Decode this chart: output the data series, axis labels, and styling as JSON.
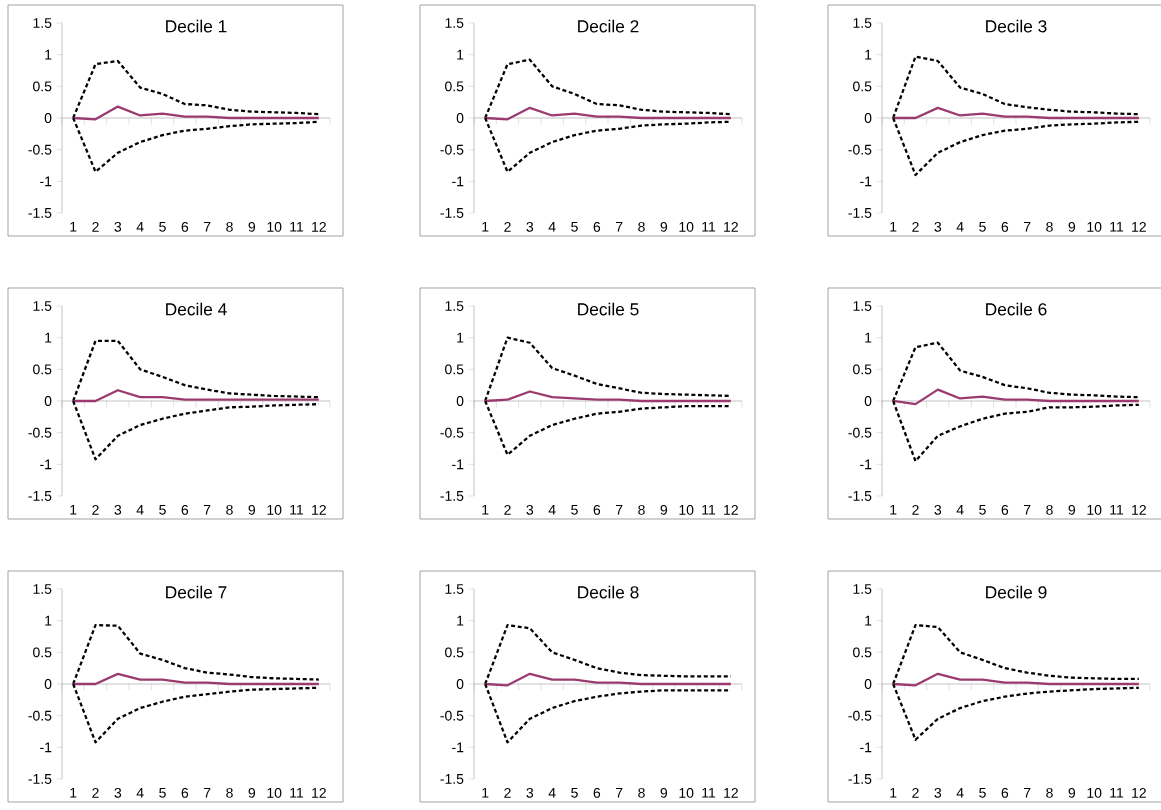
{
  "chart_data": [
    {
      "type": "line",
      "title": "Decile 1",
      "categories": [
        "1",
        "2",
        "3",
        "4",
        "5",
        "6",
        "7",
        "8",
        "9",
        "10",
        "11",
        "12"
      ],
      "ylim": [
        -1.5,
        1.5
      ],
      "yticks": [
        -1.5,
        -1,
        -0.5,
        0,
        0.5,
        1,
        1.5
      ],
      "marker": "none",
      "series": [
        {
          "color": "#000000",
          "line_style": "dashed",
          "values": [
            0,
            0.85,
            0.9,
            0.48,
            0.38,
            0.22,
            0.2,
            0.13,
            0.1,
            0.09,
            0.08,
            0.06
          ]
        },
        {
          "color": "#9b3a6e",
          "line_style": "solid",
          "values": [
            0,
            -0.02,
            0.18,
            0.04,
            0.07,
            0.02,
            0.02,
            0,
            0,
            0,
            0,
            0
          ]
        },
        {
          "color": "#000000",
          "line_style": "dashed",
          "values": [
            0,
            -0.85,
            -0.55,
            -0.38,
            -0.27,
            -0.2,
            -0.17,
            -0.13,
            -0.1,
            -0.09,
            -0.08,
            -0.06
          ]
        }
      ]
    },
    {
      "type": "line",
      "title": "Decile 2",
      "categories": [
        "1",
        "2",
        "3",
        "4",
        "5",
        "6",
        "7",
        "8",
        "9",
        "10",
        "11",
        "12"
      ],
      "ylim": [
        -1.5,
        1.5
      ],
      "yticks": [
        -1.5,
        -1,
        -0.5,
        0,
        0.5,
        1,
        1.5
      ],
      "marker": "none",
      "series": [
        {
          "color": "#000000",
          "line_style": "dashed",
          "values": [
            0,
            0.85,
            0.92,
            0.5,
            0.38,
            0.22,
            0.2,
            0.13,
            0.1,
            0.09,
            0.08,
            0.06
          ]
        },
        {
          "color": "#9b3a6e",
          "line_style": "solid",
          "values": [
            0,
            -0.02,
            0.16,
            0.04,
            0.07,
            0.02,
            0.02,
            0,
            0,
            0,
            0,
            0
          ]
        },
        {
          "color": "#000000",
          "line_style": "dashed",
          "values": [
            0,
            -0.85,
            -0.55,
            -0.38,
            -0.27,
            -0.2,
            -0.17,
            -0.12,
            -0.1,
            -0.09,
            -0.07,
            -0.06
          ]
        }
      ]
    },
    {
      "type": "line",
      "title": "Decile 3",
      "categories": [
        "1",
        "2",
        "3",
        "4",
        "5",
        "6",
        "7",
        "8",
        "9",
        "10",
        "11",
        "12"
      ],
      "ylim": [
        -1.5,
        1.5
      ],
      "yticks": [
        -1.5,
        -1,
        -0.5,
        0,
        0.5,
        1,
        1.5
      ],
      "marker": "none",
      "series": [
        {
          "color": "#000000",
          "line_style": "dashed",
          "values": [
            0,
            0.97,
            0.9,
            0.48,
            0.38,
            0.22,
            0.17,
            0.13,
            0.1,
            0.09,
            0.07,
            0.06
          ]
        },
        {
          "color": "#9b3a6e",
          "line_style": "solid",
          "values": [
            0,
            0,
            0.16,
            0.04,
            0.07,
            0.02,
            0.02,
            0,
            0,
            0,
            0,
            0
          ]
        },
        {
          "color": "#000000",
          "line_style": "dashed",
          "values": [
            0,
            -0.9,
            -0.55,
            -0.38,
            -0.27,
            -0.2,
            -0.17,
            -0.12,
            -0.1,
            -0.09,
            -0.07,
            -0.06
          ]
        }
      ]
    },
    {
      "type": "line",
      "title": "Decile 4",
      "categories": [
        "1",
        "2",
        "3",
        "4",
        "5",
        "6",
        "7",
        "8",
        "9",
        "10",
        "11",
        "12"
      ],
      "ylim": [
        -1.5,
        1.5
      ],
      "yticks": [
        -1.5,
        -1,
        -0.5,
        0,
        0.5,
        1,
        1.5
      ],
      "marker": "none",
      "series": [
        {
          "color": "#000000",
          "line_style": "dashed",
          "values": [
            0,
            0.95,
            0.95,
            0.5,
            0.38,
            0.25,
            0.18,
            0.12,
            0.1,
            0.08,
            0.07,
            0.06
          ]
        },
        {
          "color": "#9b3a6e",
          "line_style": "solid",
          "values": [
            0,
            0,
            0.17,
            0.06,
            0.06,
            0.02,
            0.02,
            0.02,
            0.02,
            0.02,
            0.02,
            0.02
          ]
        },
        {
          "color": "#000000",
          "line_style": "dashed",
          "values": [
            0,
            -0.92,
            -0.55,
            -0.38,
            -0.28,
            -0.2,
            -0.15,
            -0.1,
            -0.09,
            -0.07,
            -0.06,
            -0.05
          ]
        }
      ]
    },
    {
      "type": "line",
      "title": "Decile 5",
      "categories": [
        "1",
        "2",
        "3",
        "4",
        "5",
        "6",
        "7",
        "8",
        "9",
        "10",
        "11",
        "12"
      ],
      "ylim": [
        -1.5,
        1.5
      ],
      "yticks": [
        -1.5,
        -1,
        -0.5,
        0,
        0.5,
        1,
        1.5
      ],
      "marker": "none",
      "series": [
        {
          "color": "#000000",
          "line_style": "dashed",
          "values": [
            0,
            1.0,
            0.92,
            0.52,
            0.4,
            0.27,
            0.2,
            0.13,
            0.11,
            0.1,
            0.09,
            0.08
          ]
        },
        {
          "color": "#9b3a6e",
          "line_style": "solid",
          "values": [
            0,
            0.02,
            0.15,
            0.06,
            0.04,
            0.02,
            0.02,
            0,
            0,
            0,
            0,
            0
          ]
        },
        {
          "color": "#000000",
          "line_style": "dashed",
          "values": [
            0,
            -0.85,
            -0.55,
            -0.38,
            -0.28,
            -0.2,
            -0.17,
            -0.12,
            -0.1,
            -0.08,
            -0.08,
            -0.08
          ]
        }
      ]
    },
    {
      "type": "line",
      "title": "Decile 6",
      "categories": [
        "1",
        "2",
        "3",
        "4",
        "5",
        "6",
        "7",
        "8",
        "9",
        "10",
        "11",
        "12"
      ],
      "ylim": [
        -1.5,
        1.5
      ],
      "yticks": [
        -1.5,
        -1,
        -0.5,
        0,
        0.5,
        1,
        1.5
      ],
      "marker": "none",
      "series": [
        {
          "color": "#000000",
          "line_style": "dashed",
          "values": [
            0,
            0.85,
            0.92,
            0.48,
            0.38,
            0.25,
            0.2,
            0.13,
            0.1,
            0.09,
            0.07,
            0.06
          ]
        },
        {
          "color": "#9b3a6e",
          "line_style": "solid",
          "values": [
            0,
            -0.05,
            0.18,
            0.04,
            0.07,
            0.02,
            0.02,
            0,
            0,
            0,
            0,
            0
          ]
        },
        {
          "color": "#000000",
          "line_style": "dashed",
          "values": [
            0,
            -0.95,
            -0.55,
            -0.4,
            -0.28,
            -0.2,
            -0.17,
            -0.1,
            -0.1,
            -0.09,
            -0.07,
            -0.06
          ]
        }
      ]
    },
    {
      "type": "line",
      "title": "Decile 7",
      "categories": [
        "1",
        "2",
        "3",
        "4",
        "5",
        "6",
        "7",
        "8",
        "9",
        "10",
        "11",
        "12"
      ],
      "ylim": [
        -1.5,
        1.5
      ],
      "yticks": [
        -1.5,
        -1,
        -0.5,
        0,
        0.5,
        1,
        1.5
      ],
      "marker": "none",
      "series": [
        {
          "color": "#000000",
          "line_style": "dashed",
          "values": [
            0,
            0.93,
            0.92,
            0.48,
            0.38,
            0.25,
            0.18,
            0.15,
            0.11,
            0.09,
            0.08,
            0.07
          ]
        },
        {
          "color": "#9b3a6e",
          "line_style": "solid",
          "values": [
            0,
            0,
            0.16,
            0.07,
            0.07,
            0.02,
            0.02,
            0,
            0,
            0,
            0,
            0
          ]
        },
        {
          "color": "#000000",
          "line_style": "dashed",
          "values": [
            0,
            -0.92,
            -0.55,
            -0.38,
            -0.28,
            -0.2,
            -0.16,
            -0.12,
            -0.09,
            -0.08,
            -0.07,
            -0.06
          ]
        }
      ]
    },
    {
      "type": "line",
      "title": "Decile 8",
      "categories": [
        "1",
        "2",
        "3",
        "4",
        "5",
        "6",
        "7",
        "8",
        "9",
        "10",
        "11",
        "12"
      ],
      "ylim": [
        -1.5,
        1.5
      ],
      "yticks": [
        -1.5,
        -1,
        -0.5,
        0,
        0.5,
        1,
        1.5
      ],
      "marker": "none",
      "series": [
        {
          "color": "#000000",
          "line_style": "dashed",
          "values": [
            0,
            0.93,
            0.88,
            0.5,
            0.38,
            0.25,
            0.18,
            0.14,
            0.13,
            0.12,
            0.12,
            0.12
          ]
        },
        {
          "color": "#9b3a6e",
          "line_style": "solid",
          "values": [
            0,
            -0.02,
            0.16,
            0.07,
            0.07,
            0.02,
            0.02,
            0,
            0,
            0,
            0,
            0
          ]
        },
        {
          "color": "#000000",
          "line_style": "dashed",
          "values": [
            0,
            -0.92,
            -0.55,
            -0.38,
            -0.27,
            -0.2,
            -0.15,
            -0.12,
            -0.1,
            -0.1,
            -0.1,
            -0.1
          ]
        }
      ]
    },
    {
      "type": "line",
      "title": "Decile 9",
      "categories": [
        "1",
        "2",
        "3",
        "4",
        "5",
        "6",
        "7",
        "8",
        "9",
        "10",
        "11",
        "12"
      ],
      "ylim": [
        -1.5,
        1.5
      ],
      "yticks": [
        -1.5,
        -1,
        -0.5,
        0,
        0.5,
        1,
        1.5
      ],
      "marker": "none",
      "series": [
        {
          "color": "#000000",
          "line_style": "dashed",
          "values": [
            0,
            0.93,
            0.9,
            0.5,
            0.38,
            0.25,
            0.18,
            0.13,
            0.1,
            0.09,
            0.08,
            0.08
          ]
        },
        {
          "color": "#9b3a6e",
          "line_style": "solid",
          "values": [
            0,
            -0.02,
            0.16,
            0.07,
            0.07,
            0.02,
            0.02,
            0,
            0,
            0,
            0,
            0
          ]
        },
        {
          "color": "#000000",
          "line_style": "dashed",
          "values": [
            0,
            -0.88,
            -0.55,
            -0.38,
            -0.27,
            -0.2,
            -0.15,
            -0.12,
            -0.1,
            -0.08,
            -0.07,
            -0.06
          ]
        }
      ]
    }
  ]
}
